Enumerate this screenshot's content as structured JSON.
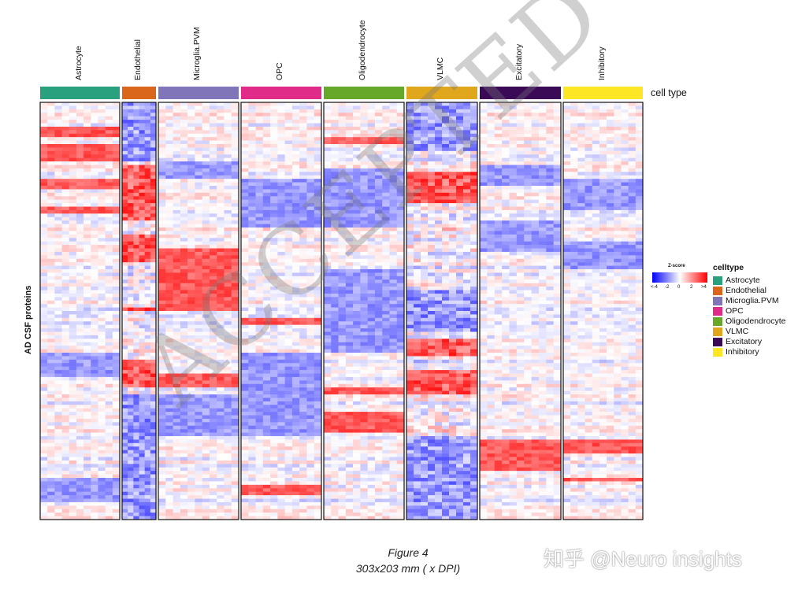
{
  "chart_data": {
    "type": "heatmap",
    "columns": [
      "Astrocyte",
      "Endothelial",
      "Microglia.PVM",
      "OPC",
      "Oligodendrocyte",
      "VLMC",
      "Excitatory",
      "Inhibitory"
    ],
    "ylabel": "AD CSF proteins",
    "annotation_row_label": "cell type",
    "color_scale": {
      "title": "Z-score",
      "ticks": [
        "<-4",
        "-2",
        "0",
        "2",
        ">4"
      ],
      "low_color": "#0000ff",
      "mid_color": "#ffffff",
      "high_color": "#ff0000"
    },
    "legend": {
      "title": "celltype",
      "placement": "right",
      "items": [
        {
          "label": "Astrocyte",
          "color": "#2aa17e"
        },
        {
          "label": "Endothelial",
          "color": "#d9661a"
        },
        {
          "label": "Microglia.PVM",
          "color": "#8075b8"
        },
        {
          "label": "OPC",
          "color": "#e02b88"
        },
        {
          "label": "Oligodendrocyte",
          "color": "#66a82a"
        },
        {
          "label": "VLMC",
          "color": "#e1a71c"
        },
        {
          "label": "Excitatory",
          "color": "#3b0a57"
        },
        {
          "label": "Inhibitory",
          "color": "#fde725"
        }
      ]
    },
    "relative_column_widths": [
      101,
      43,
      102,
      102,
      102,
      90,
      103,
      101
    ],
    "high_z_blocks": [
      {
        "column": "Astrocyte",
        "rows": [
          [
            0.06,
            0.08
          ],
          [
            0.1,
            0.14
          ],
          [
            0.18,
            0.21
          ],
          [
            0.25,
            0.27
          ]
        ]
      },
      {
        "column": "Endothelial",
        "rows": [
          [
            0.15,
            0.28
          ],
          [
            0.32,
            0.38
          ],
          [
            0.49,
            0.5
          ],
          [
            0.62,
            0.68
          ]
        ]
      },
      {
        "column": "Microglia.PVM",
        "rows": [
          [
            0.35,
            0.4
          ],
          [
            0.4,
            0.5
          ],
          [
            0.65,
            0.68
          ]
        ]
      },
      {
        "column": "OPC",
        "rows": [
          [
            0.52,
            0.53
          ],
          [
            0.92,
            0.94
          ]
        ]
      },
      {
        "column": "Oligodendrocyte",
        "rows": [
          [
            0.08,
            0.1
          ],
          [
            0.68,
            0.7
          ],
          [
            0.74,
            0.79
          ]
        ]
      },
      {
        "column": "VLMC",
        "rows": [
          [
            0.17,
            0.24
          ],
          [
            0.57,
            0.61
          ],
          [
            0.64,
            0.7
          ]
        ]
      },
      {
        "column": "Excitatory",
        "rows": [
          [
            0.81,
            0.88
          ]
        ]
      },
      {
        "column": "Inhibitory",
        "rows": [
          [
            0.81,
            0.84
          ],
          [
            0.9,
            0.91
          ]
        ]
      }
    ],
    "low_z_blocks": [
      {
        "column": "Astrocyte",
        "rows": [
          [
            0.6,
            0.66
          ],
          [
            0.9,
            0.96
          ]
        ]
      },
      {
        "column": "Endothelial",
        "rows": [
          [
            0.0,
            0.14
          ],
          [
            0.7,
            1.0
          ]
        ]
      },
      {
        "column": "Microglia.PVM",
        "rows": [
          [
            0.14,
            0.18
          ],
          [
            0.7,
            0.8
          ]
        ]
      },
      {
        "column": "OPC",
        "rows": [
          [
            0.18,
            0.3
          ],
          [
            0.6,
            0.8
          ]
        ]
      },
      {
        "column": "Oligodendrocyte",
        "rows": [
          [
            0.16,
            0.3
          ],
          [
            0.4,
            0.6
          ]
        ]
      },
      {
        "column": "VLMC",
        "rows": [
          [
            0.0,
            0.12
          ],
          [
            0.45,
            0.55
          ],
          [
            0.8,
            1.0
          ]
        ]
      },
      {
        "column": "Excitatory",
        "rows": [
          [
            0.15,
            0.2
          ],
          [
            0.28,
            0.36
          ]
        ]
      },
      {
        "column": "Inhibitory",
        "rows": [
          [
            0.18,
            0.26
          ],
          [
            0.33,
            0.4
          ]
        ]
      }
    ]
  },
  "caption": {
    "line1": "Figure 4",
    "line2": "303x203 mm ( x DPI)"
  },
  "watermark": "ACCEPTED MANUSCRIPT",
  "platform_watermark": "知乎 @Neuro insights"
}
